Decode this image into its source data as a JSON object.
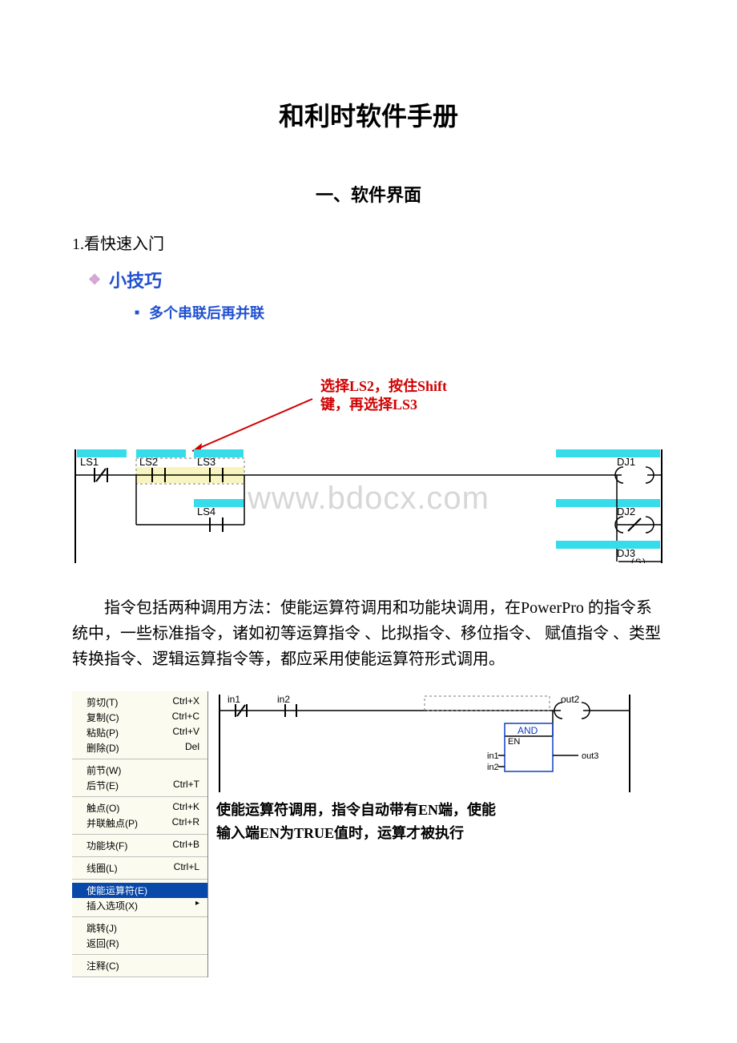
{
  "title": "和利时软件手册",
  "section": "一、软件界面",
  "item1": "1.看快速入门",
  "tip_title": "小技巧",
  "sub_tip": "多个串联后再并联",
  "diagram1": {
    "callout_line1": "选择LS2，按住Shift",
    "callout_line2": "键，再选择LS3",
    "labels": {
      "ls1": "LS1",
      "ls2": "LS2",
      "ls3": "LS3",
      "ls4": "LS4",
      "dj1": "DJ1",
      "dj2": "DJ2",
      "dj3": "DJ3",
      "s": "S"
    },
    "colors": {
      "callout_text": "#d00000",
      "arrow": "#d00000",
      "rung_bg": "#37dceb",
      "highlight_bg": "#f7f4c0",
      "wire": "#000000",
      "dashed": "#7a7a7a"
    }
  },
  "paragraph": "指令包括两种调用方法：使能运算符调用和功能块调用，在PowerPro 的指令系统中，一些标准指令，诸如初等运算指令 、比拟指令、移位指令、 赋值指令 、类型转换指令、逻辑运算指令等，都应采用使能运算符形式调用。",
  "menu": {
    "groups": [
      [
        {
          "label": "剪切(T)",
          "shortcut": "Ctrl+X"
        },
        {
          "label": "复制(C)",
          "shortcut": "Ctrl+C"
        },
        {
          "label": "粘贴(P)",
          "shortcut": "Ctrl+V"
        },
        {
          "label": "删除(D)",
          "shortcut": "Del"
        }
      ],
      [
        {
          "label": "前节(W)",
          "shortcut": ""
        },
        {
          "label": "后节(E)",
          "shortcut": "Ctrl+T"
        }
      ],
      [
        {
          "label": "触点(O)",
          "shortcut": "Ctrl+K"
        },
        {
          "label": "并联触点(P)",
          "shortcut": "Ctrl+R"
        }
      ],
      [
        {
          "label": "功能块(F)",
          "shortcut": "Ctrl+B"
        }
      ],
      [
        {
          "label": "线圈(L)",
          "shortcut": "Ctrl+L"
        }
      ],
      [
        {
          "label": "使能运算符(E)",
          "shortcut": "",
          "highlighted": true
        },
        {
          "label": "插入选项(X)",
          "shortcut": "",
          "arrow": true
        }
      ],
      [
        {
          "label": "跳转(J)",
          "shortcut": ""
        },
        {
          "label": "返回(R)",
          "shortcut": ""
        }
      ],
      [
        {
          "label": "注释(C)",
          "shortcut": ""
        }
      ]
    ]
  },
  "diagram2": {
    "labels": {
      "in1": "in1",
      "in2": "in2",
      "out2": "out2",
      "and": "AND",
      "en": "EN",
      "in1b": "in1",
      "in2b": "in2",
      "out3": "out3"
    },
    "colors": {
      "block_border": "#1040c0",
      "block_text": "#1040c0",
      "wire": "#000000",
      "dashed": "#7a7a7a",
      "rung_bg": "#37dceb"
    }
  },
  "caption2_line1": "使能运算符调用，指令自动带有EN端，使能",
  "caption2_line2": "输入端EN为TRUE值时，运算才被执行",
  "watermark": "www.bdocx.com"
}
